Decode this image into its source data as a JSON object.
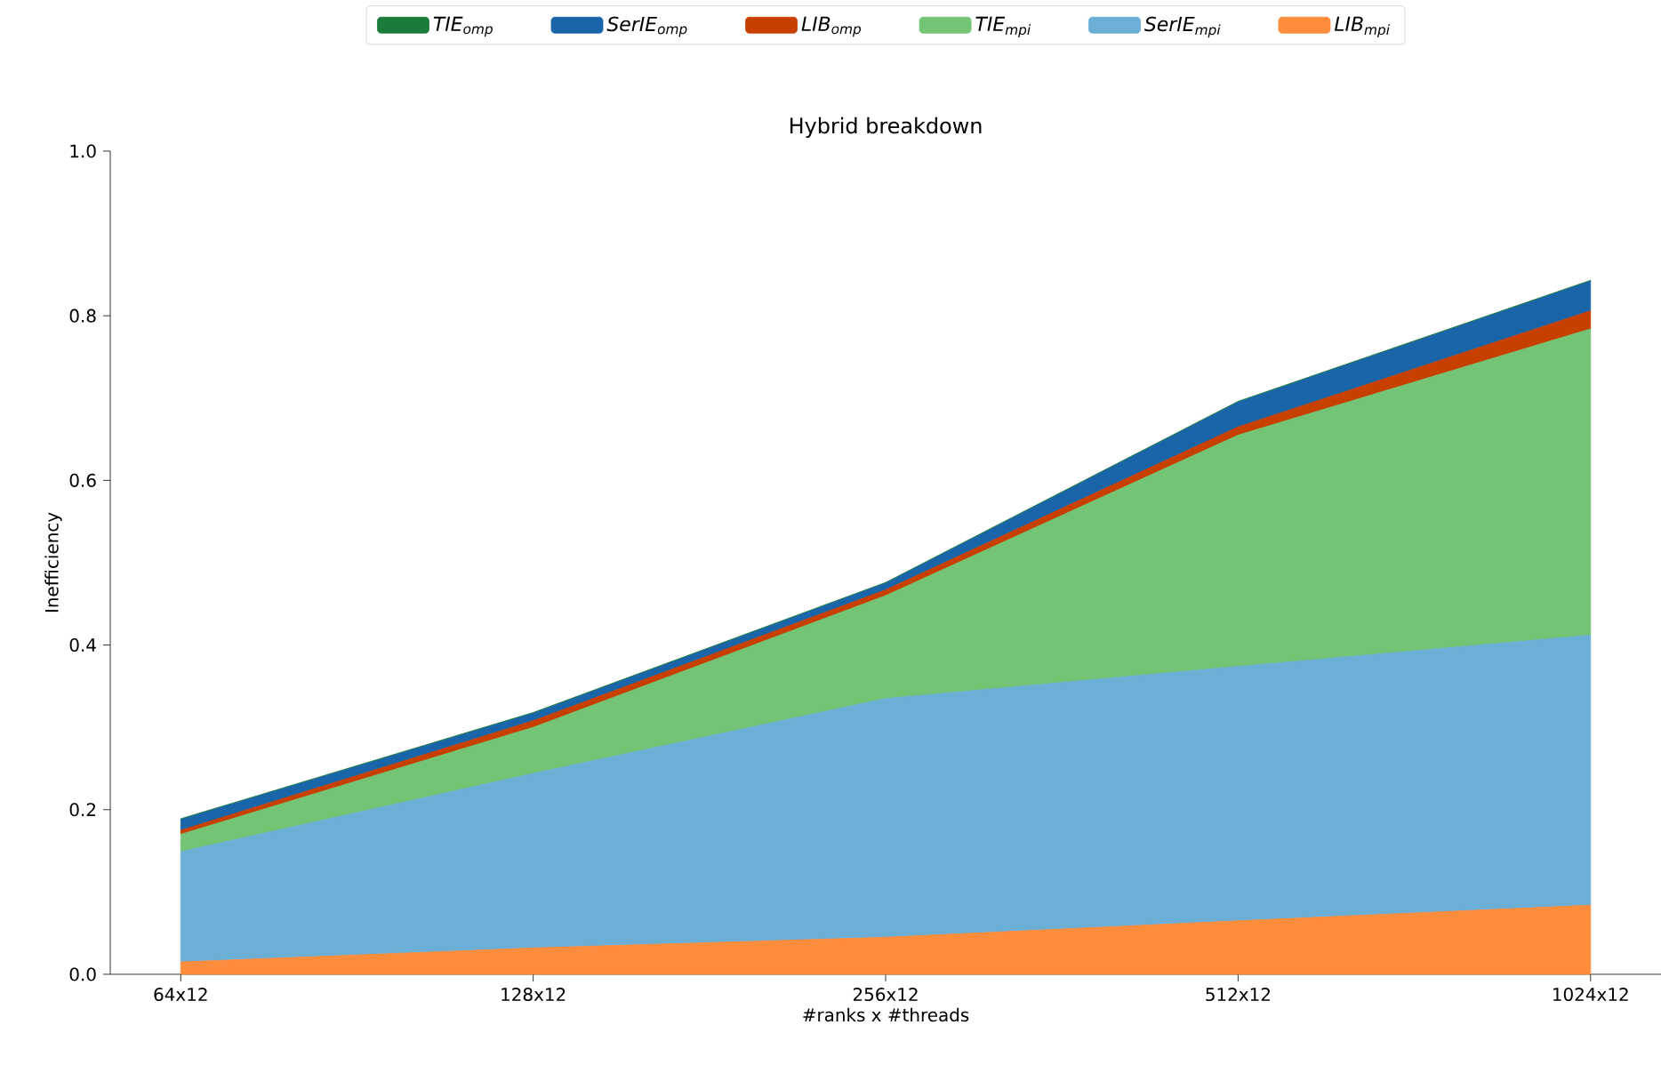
{
  "chart_data": {
    "type": "area",
    "stacked": true,
    "title": "Hybrid breakdown",
    "xlabel": "#ranks x #threads",
    "ylabel": "Inefficiency",
    "categories": [
      "64x12",
      "128x12",
      "256x12",
      "512x12",
      "1024x12"
    ],
    "series": [
      {
        "name": "LIB$_{mpi}$",
        "color": "#fd8d3c",
        "values": [
          0.015,
          0.032,
          0.045,
          0.065,
          0.084
        ]
      },
      {
        "name": "SerIE$_{mpi}$",
        "color": "#6baed6",
        "values": [
          0.134,
          0.212,
          0.29,
          0.309,
          0.328
        ]
      },
      {
        "name": "TIE$_{mpi}$",
        "color": "#74c476",
        "values": [
          0.021,
          0.056,
          0.125,
          0.281,
          0.372
        ]
      },
      {
        "name": "LIB$_{omp}$",
        "color": "#c84000",
        "values": [
          0.005,
          0.008,
          0.007,
          0.01,
          0.022
        ]
      },
      {
        "name": "SerIE$_{omp}$",
        "color": "#1a64aa",
        "values": [
          0.013,
          0.009,
          0.008,
          0.03,
          0.036
        ]
      },
      {
        "name": "TIE$_{omp}$",
        "color": "#1b7b3b",
        "values": [
          0.001,
          0.001,
          0.001,
          0.001,
          0.001
        ]
      }
    ],
    "ylim": [
      0,
      1
    ],
    "yticks": [
      {
        "value": 0,
        "label": "0.0"
      },
      {
        "value": 0.2,
        "label": "0.2"
      },
      {
        "value": 0.4,
        "label": "0.4"
      },
      {
        "value": 0.6,
        "label": "0.6"
      },
      {
        "value": 0.8,
        "label": "0.8"
      },
      {
        "value": 1,
        "label": "1.0"
      }
    ],
    "grid": false,
    "legend": "top"
  }
}
